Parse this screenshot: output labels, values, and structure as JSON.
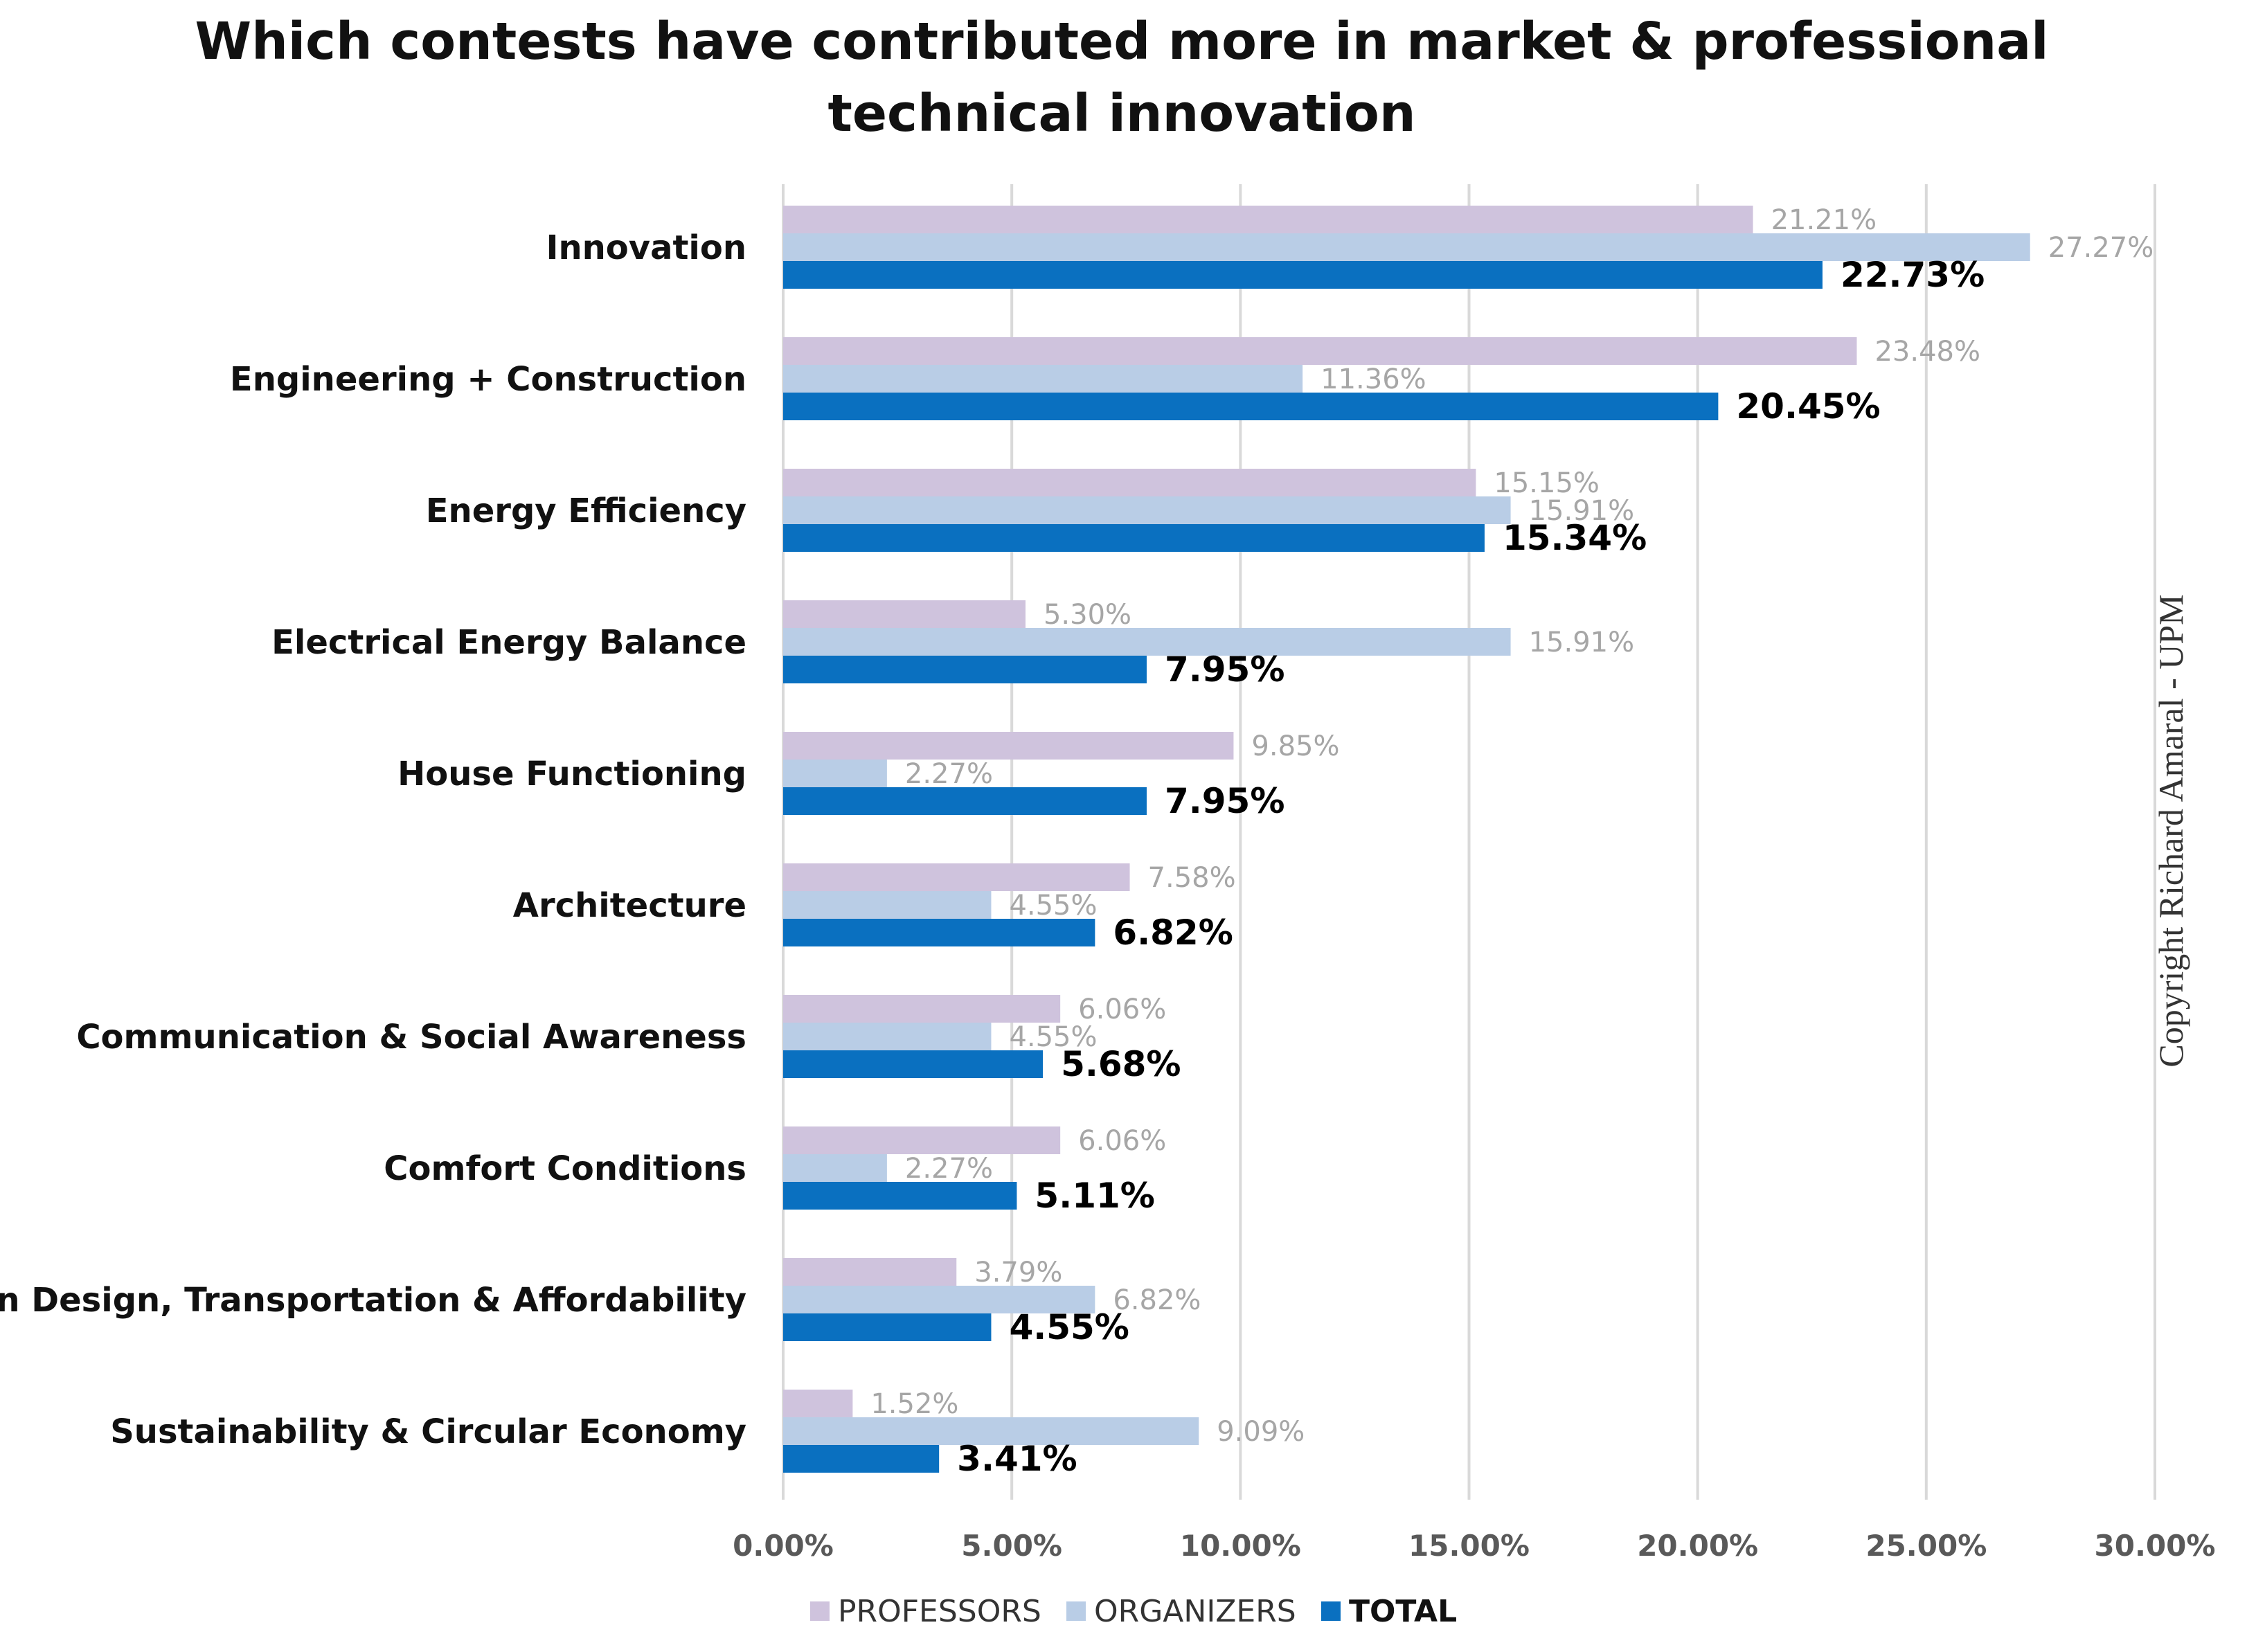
{
  "chart_data": {
    "type": "bar",
    "orientation": "horizontal",
    "title": "Which contests have contributed more in market & professional technical innovation",
    "categories": [
      "Innovation",
      "Engineering + Construction",
      "Energy Efficiency",
      "Electrical Energy Balance",
      "House Functioning",
      "Architecture",
      "Communication & Social Awareness",
      "Comfort Conditions",
      "Urban Design, Transportation & Affordability",
      "Sustainability & Circular Economy"
    ],
    "series": [
      {
        "name": "PROFESSORS",
        "color": "#cfc3dd",
        "values": [
          21.21,
          23.48,
          15.15,
          5.3,
          9.85,
          7.58,
          6.06,
          6.06,
          3.79,
          1.52
        ],
        "labels": [
          "21.21%",
          "23.48%",
          "15.15%",
          "5.30%",
          "9.85%",
          "7.58%",
          "6.06%",
          "6.06%",
          "3.79%",
          "1.52%"
        ]
      },
      {
        "name": "ORGANIZERS",
        "color": "#b9cde6",
        "values": [
          27.27,
          11.36,
          15.91,
          15.91,
          2.27,
          4.55,
          4.55,
          2.27,
          6.82,
          9.09
        ],
        "labels": [
          "27.27%",
          "11.36%",
          "15.91%",
          "15.91%",
          "2.27%",
          "4.55%",
          "4.55%",
          "2.27%",
          "6.82%",
          "9.09%"
        ]
      },
      {
        "name": "TOTAL",
        "color": "#0a70c0",
        "values": [
          22.73,
          20.45,
          15.34,
          7.95,
          7.95,
          6.82,
          5.68,
          5.11,
          4.55,
          3.41
        ],
        "labels": [
          "22.73%",
          "20.45%",
          "15.34%",
          "7.95%",
          "7.95%",
          "6.82%",
          "5.68%",
          "5.11%",
          "4.55%",
          "3.41%"
        ]
      }
    ],
    "xlim": [
      0,
      30
    ],
    "xticks": [
      0,
      5,
      10,
      15,
      20,
      25,
      30
    ],
    "xtick_labels": [
      "0.00%",
      "5.00%",
      "10.00%",
      "15.00%",
      "20.00%",
      "25.00%",
      "30.00%"
    ],
    "xlabel": "",
    "ylabel": "",
    "grid": true,
    "legend_position": "bottom-center",
    "colors": {
      "gridline": "#d9d9d9",
      "axis_text": "#595959",
      "value_label_light": "#a6a6a6",
      "value_label_total": "#000000"
    }
  },
  "copyright": "Copyright Richard Amaral - UPM"
}
